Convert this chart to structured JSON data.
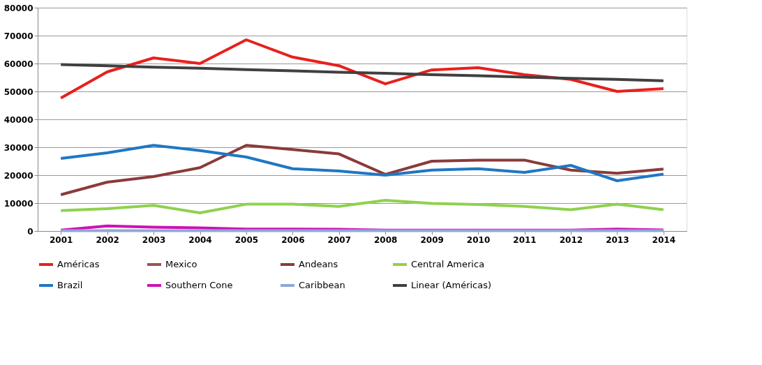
{
  "chart_data": {
    "type": "line",
    "categories": [
      "2001",
      "2002",
      "2003",
      "2004",
      "2005",
      "2006",
      "2007",
      "2008",
      "2009",
      "2010",
      "2011",
      "2012",
      "2013",
      "2014"
    ],
    "series": [
      {
        "name": "Américas",
        "color": "#e8201c",
        "values": [
          47600,
          57000,
          62000,
          60000,
          68500,
          62300,
          59200,
          52700,
          57700,
          58500,
          56000,
          54300,
          50000,
          51000
        ]
      },
      {
        "name": "Mexico",
        "color": "#a0524e",
        "values": [
          null,
          null,
          null,
          null,
          null,
          null,
          null,
          null,
          null,
          null,
          null,
          null,
          null,
          null
        ]
      },
      {
        "name": "Andeans",
        "color": "#8b3a3a",
        "values": [
          13000,
          17500,
          19500,
          22700,
          30700,
          29200,
          27600,
          20300,
          25000,
          25400,
          25400,
          21800,
          20700,
          22200
        ]
      },
      {
        "name": "Central America",
        "color": "#8fd14f",
        "values": [
          7300,
          8000,
          9200,
          6500,
          9600,
          9600,
          8800,
          11000,
          9900,
          9500,
          8800,
          7600,
          9600,
          7600
        ]
      },
      {
        "name": "Brazil",
        "color": "#1f77c4",
        "values": [
          26000,
          28000,
          30700,
          28800,
          26500,
          22300,
          21500,
          20000,
          21800,
          22300,
          21000,
          23500,
          18000,
          20400
        ]
      },
      {
        "name": "Southern Cone",
        "color": "#cc12b4",
        "values": [
          300,
          1800,
          1400,
          1100,
          700,
          700,
          600,
          300,
          300,
          300,
          300,
          300,
          700,
          400
        ]
      },
      {
        "name": "Caribbean",
        "color": "#8fa8d8",
        "values": [
          100,
          100,
          100,
          100,
          100,
          100,
          100,
          100,
          100,
          100,
          100,
          100,
          100,
          100
        ]
      },
      {
        "name": "Linear (Américas)",
        "color": "#404040",
        "values": [
          59600,
          59200,
          58700,
          58300,
          57800,
          57400,
          56900,
          56500,
          56000,
          55600,
          55100,
          54700,
          54300,
          53800
        ]
      }
    ],
    "ylim": [
      0,
      80000
    ],
    "yticks": [
      0,
      10000,
      20000,
      30000,
      40000,
      50000,
      60000,
      70000,
      80000
    ],
    "grid": "y",
    "legend": "bottom",
    "marker": "none",
    "line_style": "solid"
  }
}
